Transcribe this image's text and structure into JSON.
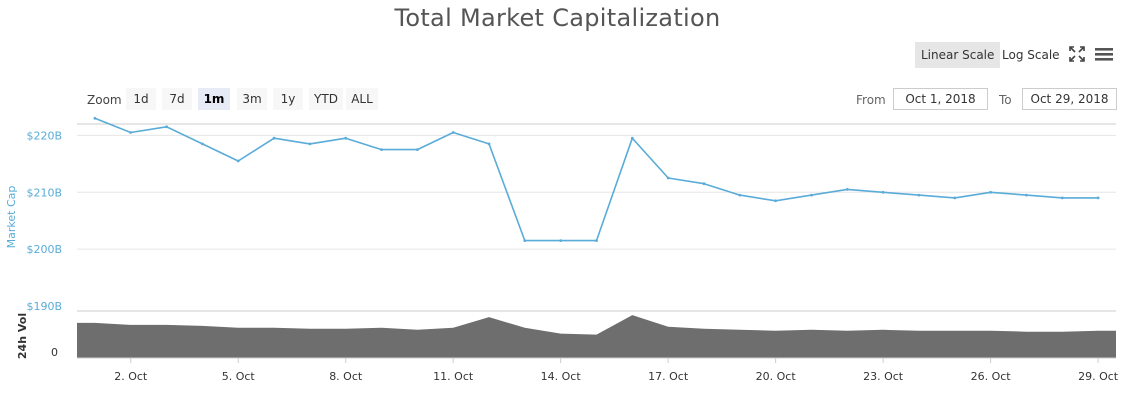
{
  "header": {
    "title": "Total Market Capitalization",
    "linear_scale": "Linear Scale",
    "log_scale": "Log Scale"
  },
  "icons": {
    "fullscreen": "fullscreen-icon",
    "menu": "hamburger-menu-icon"
  },
  "zoom": {
    "label": "Zoom",
    "options": [
      "1d",
      "7d",
      "1m",
      "3m",
      "1y",
      "YTD",
      "ALL"
    ],
    "selected": "1m"
  },
  "range": {
    "from_label": "From",
    "from_value": "Oct 1, 2018",
    "to_label": "To",
    "to_value": "Oct 29, 2018"
  },
  "colors": {
    "market_cap_line": "#5aacd8",
    "volume_area": "#6e6e6e",
    "grid": "#e6e6e6"
  },
  "chart_data": {
    "type": "line",
    "title": "Total Market Capitalization",
    "x_ticks": [
      "2. Oct",
      "5. Oct",
      "8. Oct",
      "11. Oct",
      "14. Oct",
      "17. Oct",
      "20. Oct",
      "23. Oct",
      "26. Oct",
      "29. Oct"
    ],
    "xlim": [
      "2018-10-01",
      "2018-10-29"
    ],
    "grid": true,
    "series": [
      {
        "ylabel": "Market Cap",
        "y_ticks": [
          "$190B",
          "$200B",
          "$210B",
          "$220B"
        ],
        "ylim": [
          190,
          222
        ],
        "unit": "billion USD",
        "x": [
          "2018-10-01",
          "2018-10-02",
          "2018-10-03",
          "2018-10-04",
          "2018-10-05",
          "2018-10-06",
          "2018-10-07",
          "2018-10-08",
          "2018-10-09",
          "2018-10-10",
          "2018-10-11",
          "2018-10-12",
          "2018-10-13",
          "2018-10-14",
          "2018-10-15",
          "2018-10-16",
          "2018-10-17",
          "2018-10-18",
          "2018-10-19",
          "2018-10-20",
          "2018-10-21",
          "2018-10-22",
          "2018-10-23",
          "2018-10-24",
          "2018-10-25",
          "2018-10-26",
          "2018-10-27",
          "2018-10-28",
          "2018-10-29"
        ],
        "values": [
          223,
          220.5,
          221.5,
          218.5,
          215.5,
          219.5,
          218.5,
          219.5,
          217.5,
          217.5,
          220.5,
          218.5,
          201.5,
          201.5,
          201.5,
          219.5,
          212.5,
          211.5,
          209.5,
          208.5,
          209.5,
          210.5,
          210,
          209.5,
          209,
          210,
          209.5,
          209,
          209
        ]
      },
      {
        "ylabel": "24h Vol",
        "y_ticks": [
          "0"
        ],
        "values": [
          36,
          34,
          34,
          33,
          31,
          31,
          30,
          30,
          31,
          29,
          31,
          42,
          31,
          25,
          24,
          44,
          32,
          30,
          29,
          28,
          29,
          28,
          29,
          28,
          28,
          28,
          27,
          27,
          28
        ]
      }
    ]
  }
}
